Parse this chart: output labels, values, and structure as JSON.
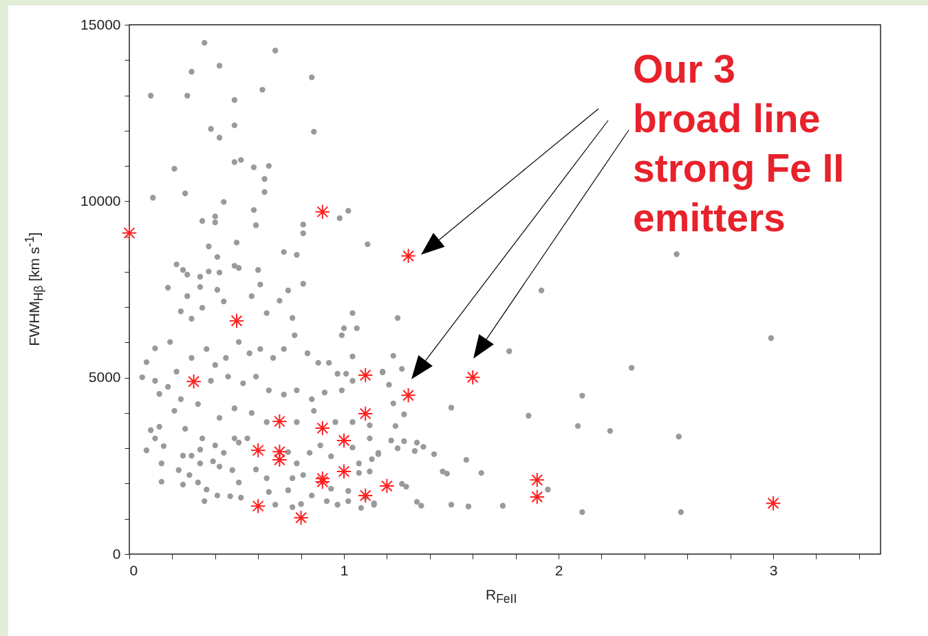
{
  "chart_data": {
    "type": "scatter",
    "xlabel": "R$_{FeII}$",
    "ylabel": "FWHM$_{Hβ}$ [km s$^{-1}$]",
    "annotations": [
      "Our 3\nbroad line\nstrong Fe II\nemitters"
    ],
    "xlim": [
      0,
      3.5
    ],
    "ylim": [
      0,
      15000
    ],
    "xticks": [
      0,
      {
        "value": 0.2,
        "label": null
      },
      {
        "value": 0.4,
        "label": null
      },
      {
        "value": 0.6,
        "label": null
      },
      {
        "value": 0.8,
        "label": null
      },
      1,
      {
        "value": 1.2,
        "label": null
      },
      {
        "value": 1.4,
        "label": null
      },
      {
        "value": 1.6,
        "label": null
      },
      {
        "value": 1.8,
        "label": null
      },
      2,
      {
        "value": 2.2,
        "label": null
      },
      {
        "value": 2.4,
        "label": null
      },
      {
        "value": 2.6,
        "label": null
      },
      {
        "value": 2.8,
        "label": null
      },
      3,
      {
        "value": 3.2,
        "label": null
      },
      {
        "value": 3.4,
        "label": null
      }
    ],
    "yticks": [
      0,
      {
        "value": 1000,
        "label": null
      },
      {
        "value": 2000,
        "label": null
      },
      {
        "value": 3000,
        "label": null
      },
      {
        "value": 4000,
        "label": null
      },
      5000,
      {
        "value": 6000,
        "label": null
      },
      {
        "value": 7000,
        "label": null
      },
      {
        "value": 8000,
        "label": null
      },
      {
        "value": 9000,
        "label": null
      },
      10000,
      {
        "value": 11000,
        "label": null
      },
      {
        "value": 12000,
        "label": null
      },
      {
        "value": 13000,
        "label": null
      },
      {
        "value": 14000,
        "label": null
      },
      15000
    ],
    "grid": false,
    "series": [
      {
        "color": "#9a9a9a",
        "marker": "circle",
        "x": [
          0.35,
          0.68,
          0.42,
          0.29,
          0.85,
          0.62,
          0.1,
          0.27,
          0.49,
          0.49,
          0.38,
          0.86,
          0.42,
          0.49,
          0.52,
          0.21,
          0.58,
          0.65,
          0.63,
          0.63,
          0.11,
          0.26,
          0.44,
          0.58,
          0.4,
          0.34,
          0.4,
          0.59,
          0.81,
          0.81,
          0.98,
          1.02,
          1.11,
          0.5,
          0.37,
          0.41,
          0.72,
          0.78,
          0.22,
          0.25,
          0.27,
          0.33,
          0.37,
          0.42,
          0.49,
          0.51,
          0.6,
          2.55,
          1.92,
          1.25,
          2.99,
          1.77,
          2.34,
          1.23,
          1.18,
          1.27,
          1.21,
          2.11,
          1.23,
          1.5,
          1.28,
          1.86,
          1.24,
          2.09,
          2.24,
          2.56,
          1.28,
          1.22,
          1.34,
          1.37,
          1.33,
          1.25,
          1.42,
          1.16,
          1.57,
          1.46,
          1.48,
          1.64,
          1.95,
          1.27,
          1.29,
          1.34,
          1.36,
          1.5,
          1.58,
          1.74,
          2.11,
          2.57,
          1.14,
          0.18,
          0.81,
          0.74,
          0.41,
          0.61,
          0.27,
          0.33,
          0.57,
          0.7,
          0.44,
          0.24,
          0.34,
          0.64,
          0.76,
          1.04,
          1.0,
          1.06,
          0.99,
          0.29,
          0.19,
          0.12,
          0.08,
          0.06,
          0.12,
          0.14,
          0.18,
          0.22,
          0.29,
          0.36,
          0.4,
          0.45,
          0.51,
          0.56,
          0.61,
          0.67,
          0.72,
          0.77,
          0.83,
          0.88,
          0.93,
          0.97,
          1.01,
          1.04,
          1.18,
          1.04,
          0.38,
          0.46,
          0.53,
          0.59,
          0.65,
          0.72,
          0.78,
          0.85,
          0.91,
          0.99,
          0.24,
          0.32,
          0.42,
          0.49,
          0.57,
          0.64,
          0.78,
          0.86,
          0.96,
          1.04,
          1.12,
          0.21,
          0.14,
          0.1,
          0.12,
          0.08,
          0.16,
          0.26,
          0.34,
          0.4,
          0.49,
          0.55,
          0.25,
          0.29,
          0.33,
          0.44,
          0.51,
          0.74,
          0.78,
          0.84,
          0.89,
          0.94,
          1.04,
          1.12,
          1.16,
          0.15,
          0.23,
          0.28,
          0.33,
          0.39,
          0.42,
          0.48,
          0.59,
          0.64,
          0.76,
          0.81,
          0.94,
          1.07,
          1.12,
          1.13,
          0.15,
          0.25,
          0.32,
          0.36,
          0.35,
          0.41,
          0.47,
          0.52,
          0.51,
          0.65,
          0.68,
          0.74,
          0.76,
          0.8,
          0.85,
          0.92,
          0.97,
          1.02,
          1.08,
          1.14,
          1.1,
          1.02,
          1.07
        ],
        "values": [
          14490,
          14270,
          13840,
          13670,
          13510,
          13160,
          12990,
          12990,
          12870,
          12150,
          12050,
          11970,
          11800,
          11110,
          11170,
          10920,
          10960,
          11000,
          10630,
          10260,
          10100,
          10220,
          9980,
          9750,
          9570,
          9440,
          9400,
          9320,
          9340,
          9090,
          9520,
          9730,
          8780,
          8830,
          8720,
          8420,
          8560,
          8480,
          8210,
          8050,
          7920,
          7860,
          8010,
          7980,
          8170,
          8110,
          8050,
          8500,
          7470,
          6690,
          6120,
          5750,
          5280,
          5620,
          5150,
          5250,
          4800,
          4490,
          4270,
          4150,
          3960,
          3920,
          3630,
          3630,
          3490,
          3330,
          3200,
          3220,
          3160,
          3040,
          2920,
          3000,
          2830,
          2830,
          2670,
          2340,
          2280,
          2300,
          1830,
          1990,
          1910,
          1480,
          1370,
          1400,
          1350,
          1370,
          1190,
          1190,
          1440,
          7550,
          7660,
          7470,
          7490,
          7640,
          7310,
          7570,
          7310,
          7180,
          7160,
          6880,
          6980,
          6830,
          6690,
          6830,
          6400,
          6400,
          6200,
          6670,
          6010,
          5830,
          5440,
          5010,
          4910,
          4540,
          4740,
          5170,
          5560,
          5810,
          5360,
          5560,
          6010,
          5690,
          5810,
          5560,
          5810,
          6200,
          5690,
          5420,
          5420,
          5110,
          5110,
          4910,
          5170,
          5600,
          4910,
          5030,
          4840,
          5030,
          4640,
          4520,
          4640,
          4390,
          4580,
          4640,
          4390,
          4250,
          3860,
          4130,
          4000,
          3740,
          3740,
          4060,
          3740,
          3740,
          3650,
          4060,
          3610,
          3510,
          3280,
          2940,
          3060,
          3550,
          3280,
          3080,
          3280,
          3280,
          2790,
          2790,
          2960,
          2870,
          3160,
          2890,
          2570,
          2870,
          3080,
          2770,
          3020,
          3280,
          2870,
          2570,
          2380,
          2240,
          2570,
          2630,
          2480,
          2380,
          2400,
          2150,
          2150,
          2240,
          1850,
          2300,
          2340,
          2690,
          2050,
          1970,
          2030,
          1830,
          1500,
          1660,
          1640,
          1600,
          2030,
          1760,
          1400,
          1810,
          1330,
          1420,
          1660,
          1500,
          1400,
          1500,
          1310,
          1400,
          1620,
          1790,
          2570
        ]
      },
      {
        "color": "#ff2020",
        "marker": "cross",
        "x": [
          0,
          0.9,
          1.3,
          0.5,
          0.3,
          1.1,
          1.3,
          1.6,
          1.1,
          0.7,
          0.9,
          1.0,
          0.6,
          0.7,
          0.7,
          0.9,
          0.9,
          1.0,
          1.2,
          1.1,
          0.6,
          0.8,
          1.9,
          1.9,
          3.0
        ],
        "values": [
          9100,
          9700,
          8450,
          6610,
          4890,
          5070,
          4500,
          5010,
          3980,
          3760,
          3570,
          3220,
          2940,
          2900,
          2670,
          2140,
          2050,
          2340,
          1930,
          1660,
          1360,
          1030,
          2100,
          1620,
          1440
        ]
      }
    ]
  }
}
